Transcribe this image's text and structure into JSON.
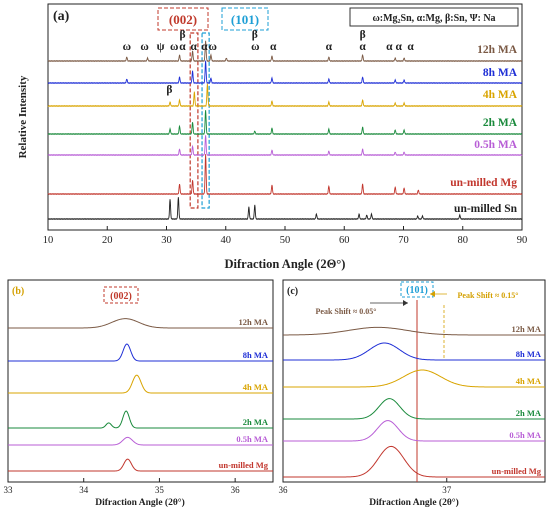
{
  "colors": {
    "12h": "#7b5a45",
    "8h": "#1f2fd6",
    "4h": "#d9a400",
    "2h": "#1a8a3c",
    "0.5h": "#b85ed6",
    "mg": "#c2372e",
    "sn": "#222222",
    "ref002": "#c0392b",
    "ref101": "#1e9fd6"
  },
  "chart_data": [
    {
      "type": "line",
      "panel_label": "(a)",
      "xlabel": "Difraction Angle (2Θ°)",
      "ylabel": "Relative Intensity",
      "xlim": [
        10,
        90
      ],
      "xticks": [
        10,
        20,
        30,
        40,
        50,
        60,
        70,
        80,
        90
      ],
      "grid": false,
      "legend_box": "ω:Mg₂Sn, α:Mg, β:Sn, Ψ: Na",
      "box_002": "(002)",
      "box_101": "(101)",
      "series": [
        {
          "name": "12h MA",
          "key": "12h",
          "peaks": [
            [
              23.3,
              4
            ],
            [
              26.8,
              3
            ],
            [
              32.2,
              6
            ],
            [
              34.4,
              10
            ],
            [
              36.6,
              20
            ],
            [
              37.5,
              6
            ],
            [
              40.1,
              3
            ],
            [
              47.8,
              5
            ],
            [
              57.4,
              4
            ],
            [
              63.1,
              6
            ],
            [
              68.6,
              3
            ],
            [
              70.1,
              3
            ]
          ]
        },
        {
          "name": "8h MA",
          "key": "8h",
          "peaks": [
            [
              23.3,
              4
            ],
            [
              32.2,
              6
            ],
            [
              34.4,
              12
            ],
            [
              36.6,
              22
            ],
            [
              37.5,
              5
            ],
            [
              47.8,
              5
            ],
            [
              57.4,
              4
            ],
            [
              63.1,
              6
            ],
            [
              68.6,
              3
            ],
            [
              70.1,
              3
            ]
          ]
        },
        {
          "name": "4h MA",
          "key": "4h",
          "peaks": [
            [
              30.6,
              4
            ],
            [
              32.2,
              6
            ],
            [
              34.7,
              14
            ],
            [
              36.9,
              22
            ],
            [
              47.8,
              5
            ],
            [
              57.4,
              4
            ],
            [
              63.1,
              6
            ],
            [
              68.6,
              3
            ],
            [
              70.1,
              3
            ]
          ]
        },
        {
          "name": "2h MA",
          "key": "2h",
          "peaks": [
            [
              30.6,
              5
            ],
            [
              32.2,
              8
            ],
            [
              34.4,
              12
            ],
            [
              36.6,
              24
            ],
            [
              44.9,
              3
            ],
            [
              47.8,
              6
            ],
            [
              57.4,
              5
            ],
            [
              63.1,
              7
            ],
            [
              68.6,
              4
            ],
            [
              70.1,
              4
            ]
          ]
        },
        {
          "name": "0.5h MA",
          "key": "0.5h",
          "peaks": [
            [
              32.2,
              6
            ],
            [
              34.4,
              9
            ],
            [
              36.6,
              20
            ],
            [
              47.8,
              5
            ],
            [
              57.4,
              4
            ],
            [
              63.1,
              6
            ],
            [
              68.6,
              3
            ],
            [
              70.1,
              3
            ]
          ]
        },
        {
          "name": "un-milled Mg",
          "key": "mg",
          "peaks": [
            [
              32.2,
              10
            ],
            [
              34.4,
              14
            ],
            [
              36.6,
              40
            ],
            [
              47.8,
              9
            ],
            [
              57.4,
              8
            ],
            [
              63.1,
              10
            ],
            [
              68.6,
              7
            ],
            [
              70.1,
              6
            ],
            [
              72.5,
              4
            ]
          ]
        },
        {
          "name": "un-milled Sn",
          "key": "sn",
          "peaks": [
            [
              30.6,
              20
            ],
            [
              32.0,
              22
            ],
            [
              43.9,
              12
            ],
            [
              44.9,
              14
            ],
            [
              55.3,
              5
            ],
            [
              62.5,
              5
            ],
            [
              63.8,
              4
            ],
            [
              64.6,
              5
            ],
            [
              72.4,
              3
            ],
            [
              73.2,
              3
            ],
            [
              79.5,
              4
            ]
          ]
        }
      ],
      "markers": [
        {
          "t": "ω",
          "x": 23.3,
          "row": 0
        },
        {
          "t": "ω",
          "x": 26.3,
          "row": 0
        },
        {
          "t": "ψ",
          "x": 29.0,
          "row": 0
        },
        {
          "t": "ω",
          "x": 31.3,
          "row": 0
        },
        {
          "t": "α",
          "x": 32.7,
          "row": 0
        },
        {
          "t": "α",
          "x": 34.6,
          "row": 0
        },
        {
          "t": "α",
          "x": 36.4,
          "row": 0
        },
        {
          "t": "ω",
          "x": 37.8,
          "row": 0
        },
        {
          "t": "ω",
          "x": 45.0,
          "row": 0
        },
        {
          "t": "α",
          "x": 48.0,
          "row": 0
        },
        {
          "t": "α",
          "x": 57.4,
          "row": 0
        },
        {
          "t": "α",
          "x": 63.1,
          "row": 0
        },
        {
          "t": "α",
          "x": 67.6,
          "row": 0
        },
        {
          "t": "α",
          "x": 69.2,
          "row": 0
        },
        {
          "t": "α",
          "x": 71.2,
          "row": 0
        },
        {
          "t": "β",
          "x": 32.7,
          "row": 1
        },
        {
          "t": "β",
          "x": 44.9,
          "row": 1
        },
        {
          "t": "β",
          "x": 63.1,
          "row": 1
        },
        {
          "t": "β",
          "x": 30.5,
          "row": 2
        }
      ]
    },
    {
      "type": "line",
      "panel_label": "(b)",
      "xlabel": "Difraction Angle (2θ°)",
      "xlim": [
        33,
        36.5
      ],
      "xticks": [
        33,
        34,
        35,
        36
      ],
      "box": "(002)",
      "series": [
        {
          "name": "12h MA",
          "key": "12h",
          "peaks": [
            [
              34.55,
              0.25,
              0.55
            ]
          ]
        },
        {
          "name": "8h MA",
          "key": "8h",
          "peaks": [
            [
              34.57,
              0.07,
              1.0
            ]
          ]
        },
        {
          "name": "4h MA",
          "key": "4h",
          "peaks": [
            [
              34.7,
              0.08,
              1.05
            ]
          ]
        },
        {
          "name": "2h MA",
          "key": "2h",
          "peaks": [
            [
              34.56,
              0.06,
              1.0
            ],
            [
              34.33,
              0.05,
              0.3
            ]
          ]
        },
        {
          "name": "0.5h MA",
          "key": "0.5h",
          "peaks": [
            [
              34.58,
              0.09,
              0.45
            ]
          ]
        },
        {
          "name": "un-milled Mg",
          "key": "mg",
          "peaks": [
            [
              34.58,
              0.07,
              0.7
            ]
          ]
        }
      ]
    },
    {
      "type": "line",
      "panel_label": "(c)",
      "xlabel": "Difraction Angle (2θ°)",
      "xlim": [
        36,
        37.6
      ],
      "xticks": [
        36,
        37
      ],
      "box": "(101)",
      "annotations": [
        "Peak Shift ≈ 0.05°",
        "Peak Shift ≈ 0.15°"
      ],
      "series": [
        {
          "name": "12h MA",
          "key": "12h",
          "peaks": [
            [
              36.58,
              0.25,
              0.45
            ]
          ]
        },
        {
          "name": "8h MA",
          "key": "8h",
          "peaks": [
            [
              36.62,
              0.13,
              1.0
            ]
          ]
        },
        {
          "name": "4h MA",
          "key": "4h",
          "peaks": [
            [
              36.85,
              0.16,
              1.0
            ]
          ]
        },
        {
          "name": "2h MA",
          "key": "2h",
          "peaks": [
            [
              36.65,
              0.09,
              1.2
            ]
          ]
        },
        {
          "name": "0.5h MA",
          "key": "0.5h",
          "peaks": [
            [
              36.64,
              0.09,
              1.2
            ]
          ]
        },
        {
          "name": "un-milled Mg",
          "key": "mg",
          "peaks": [
            [
              36.66,
              0.11,
              1.8
            ]
          ]
        }
      ]
    }
  ]
}
